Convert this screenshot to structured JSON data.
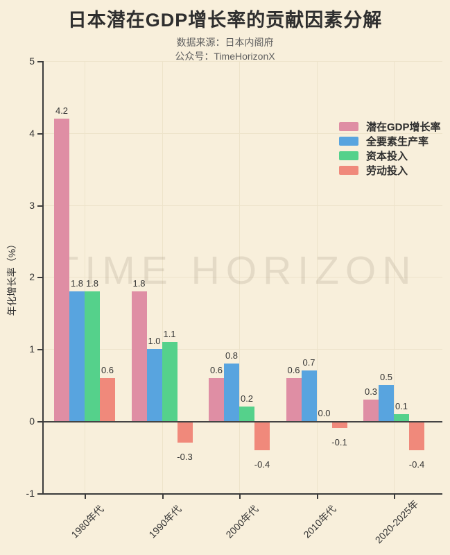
{
  "page": {
    "background": "#F8EFDB"
  },
  "header": {
    "title": "日本潜在GDP增长率的贡献因素分解",
    "subtitle_source": "数据来源：日本内阁府",
    "subtitle_account": "公众号：TimeHorizonX"
  },
  "watermark": "TIME HORIZON",
  "chart_data": {
    "type": "bar",
    "title": "日本潜在GDP增长率的贡献因素分解",
    "xlabel": "",
    "ylabel": "年化增长率（%）",
    "categories": [
      "1980年代",
      "1990年代",
      "2000年代",
      "2010年代",
      "2020-2025年"
    ],
    "series": [
      {
        "name": "潜在GDP增长率",
        "color": "#DF8EA4",
        "values": [
          4.2,
          1.8,
          0.6,
          0.6,
          0.3
        ]
      },
      {
        "name": "全要素生产率",
        "color": "#58A4DF",
        "values": [
          1.8,
          1.0,
          0.8,
          0.7,
          0.5
        ]
      },
      {
        "name": "资本投入",
        "color": "#55D18B",
        "values": [
          1.8,
          1.1,
          0.2,
          0.0,
          0.1
        ]
      },
      {
        "name": "劳动投入",
        "color": "#F0897B",
        "values": [
          0.6,
          -0.3,
          -0.4,
          -0.1,
          -0.4
        ]
      }
    ],
    "ylim": [
      -1,
      5
    ],
    "yticks": [
      5,
      4,
      3,
      2,
      1,
      0,
      -1
    ],
    "grid": true,
    "value_labels": true,
    "legend_position": "upper right",
    "colors": {
      "background": "#F8EFDB",
      "gridline": "#EDE3CA",
      "axis": "#3B3B3B",
      "text_primary": "#2E2E2E",
      "text_secondary": "#5F5F5F",
      "bar_label": "#333333",
      "watermark": "rgba(125,114,92,0.16)"
    }
  }
}
